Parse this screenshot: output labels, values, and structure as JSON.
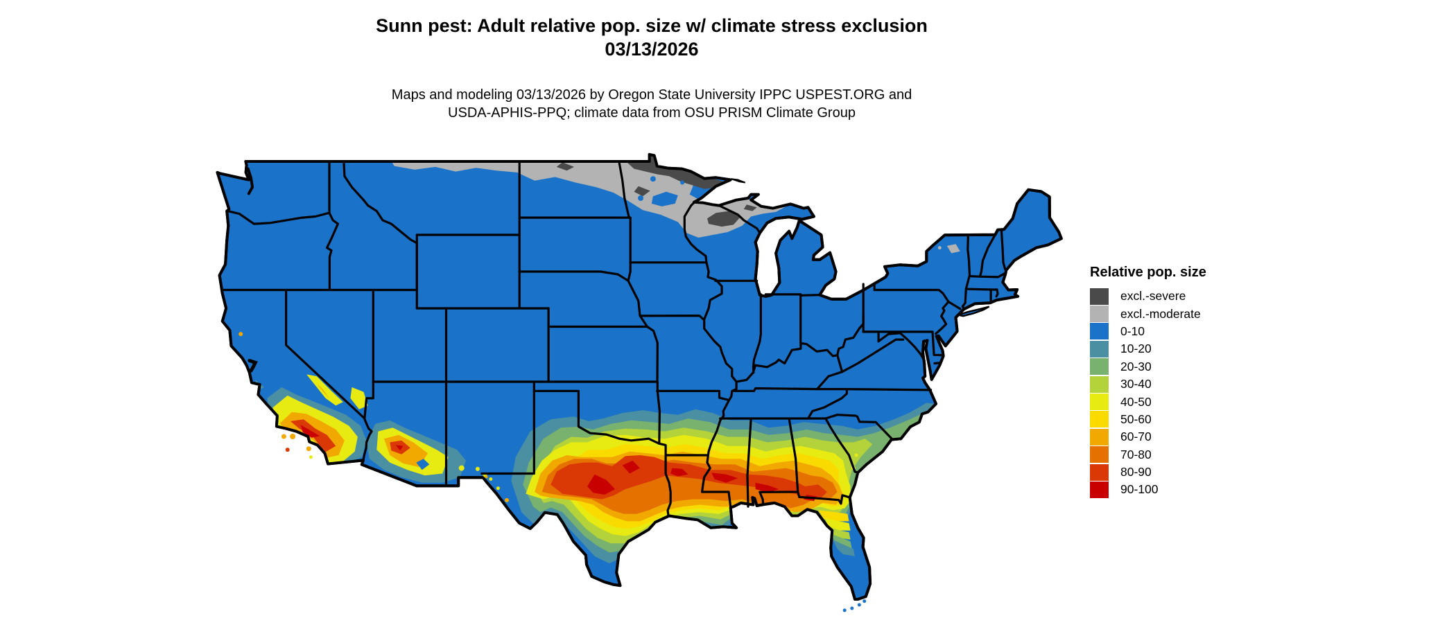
{
  "figure": {
    "type": "choropleth-map",
    "region": "Continental United States"
  },
  "title": {
    "line1": "Sunn pest: Adult relative pop. size w/ climate stress exclusion",
    "line2": "03/13/2026"
  },
  "subtitle": {
    "line1": "Maps and modeling 03/13/2026 by Oregon State University IPPC USPEST.ORG and",
    "line2": "USDA-APHIS-PPQ; climate data from OSU PRISM Climate Group"
  },
  "legend": {
    "title": "Relative pop. size",
    "items": [
      {
        "key": "excl_severe",
        "label": "excl.-severe",
        "color": "#4A4A4A"
      },
      {
        "key": "excl_moderate",
        "label": "excl.-moderate",
        "color": "#B3B3B3"
      },
      {
        "key": "c0_10",
        "label": "0-10",
        "color": "#1A73C8"
      },
      {
        "key": "c10_20",
        "label": "10-20",
        "color": "#4B8FA3"
      },
      {
        "key": "c20_30",
        "label": "20-30",
        "color": "#79B16F"
      },
      {
        "key": "c30_40",
        "label": "30-40",
        "color": "#B4D23A"
      },
      {
        "key": "c40_50",
        "label": "40-50",
        "color": "#E7EB11"
      },
      {
        "key": "c50_60",
        "label": "50-60",
        "color": "#F9DB00"
      },
      {
        "key": "c60_70",
        "label": "60-70",
        "color": "#F1A900"
      },
      {
        "key": "c70_80",
        "label": "70-80",
        "color": "#E57200"
      },
      {
        "key": "c80_90",
        "label": "80-90",
        "color": "#DA3905"
      },
      {
        "key": "c90_100",
        "label": "90-100",
        "color": "#C90000"
      }
    ]
  },
  "map": {
    "background": "#FFFFFF",
    "border_color": "#000000",
    "base_class": "c0_10",
    "regions_summary": [
      {
        "area": "Northern Montana, North Dakota, northern Minnesota, northern Wisconsin, Michigan UP",
        "classes": [
          "excl.-moderate",
          "excl.-severe"
        ]
      },
      {
        "area": "Most of the continental US",
        "classes": [
          "0-10"
        ]
      },
      {
        "area": "Southern band: central Texas, southern Oklahoma, Louisiana, Mississippi, Alabama, southern Georgia, north Florida",
        "classes": [
          "20-30",
          "30-40",
          "40-50",
          "50-60",
          "60-70",
          "70-80",
          "80-90",
          "90-100"
        ]
      },
      {
        "area": "Southern California, southern Arizona, southern New Mexico",
        "classes": [
          "40-50",
          "60-70",
          "70-80",
          "80-90",
          "90-100"
        ]
      },
      {
        "area": "Atlantic coastal plain NC-SC-GA and central Florida",
        "classes": [
          "10-20",
          "20-30",
          "30-40"
        ]
      }
    ]
  }
}
